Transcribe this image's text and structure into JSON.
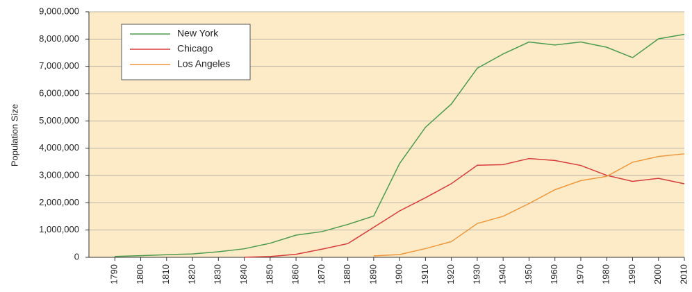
{
  "chart_data": {
    "type": "line",
    "y_label": "Population Size",
    "x": [
      1790,
      1800,
      1810,
      1820,
      1830,
      1840,
      1850,
      1860,
      1870,
      1880,
      1890,
      1900,
      1910,
      1920,
      1930,
      1940,
      1950,
      1960,
      1970,
      1980,
      1990,
      2000,
      2010
    ],
    "xlim": [
      1780,
      2010
    ],
    "xticks": [
      1790,
      1800,
      1810,
      1820,
      1830,
      1840,
      1850,
      1860,
      1870,
      1880,
      1890,
      1900,
      1910,
      1920,
      1930,
      1940,
      1950,
      1960,
      1970,
      1980,
      1990,
      2000,
      2010
    ],
    "ylim": [
      0,
      9000000
    ],
    "yticks": [
      0,
      {
        "value": 1000000,
        "label": "1,000,000"
      },
      {
        "value": 2000000,
        "label": "2,000,000"
      },
      {
        "value": 3000000,
        "label": "3,000,000"
      },
      {
        "value": 4000000,
        "label": "4,000,000"
      },
      {
        "value": 5000000,
        "label": "5,000,000"
      },
      {
        "value": 6000000,
        "label": "6,000,000"
      },
      {
        "value": 7000000,
        "label": "7,000,000"
      },
      {
        "value": 8000000,
        "label": "8,000,000"
      },
      {
        "value": 9000000,
        "label": "9,000,000"
      }
    ],
    "grid": true,
    "legend": "upper left",
    "series": [
      {
        "name": "New York",
        "color": "#4b9a4e",
        "values": [
          33000,
          60000,
          96000,
          124000,
          203000,
          313000,
          516000,
          814000,
          942000,
          1206000,
          1515000,
          3437000,
          4767000,
          5620000,
          6930000,
          7455000,
          7892000,
          7782000,
          7895000,
          7700000,
          7320000,
          8008000,
          8175000
        ]
      },
      {
        "name": "Chicago",
        "color": "#d93a3a",
        "values": [
          null,
          null,
          null,
          null,
          null,
          4470,
          30000,
          112000,
          299000,
          503000,
          1100000,
          1700000,
          2185000,
          2700000,
          3376000,
          3397000,
          3621000,
          3550000,
          3367000,
          3005000,
          2784000,
          2896000,
          2695000
        ]
      },
      {
        "name": "Los Angeles",
        "color": "#f0963c",
        "values": [
          null,
          null,
          null,
          null,
          null,
          null,
          null,
          null,
          null,
          null,
          50000,
          102000,
          319000,
          577000,
          1238000,
          1504000,
          1970000,
          2479000,
          2812000,
          2967000,
          3485000,
          3695000,
          3793000
        ]
      }
    ]
  }
}
